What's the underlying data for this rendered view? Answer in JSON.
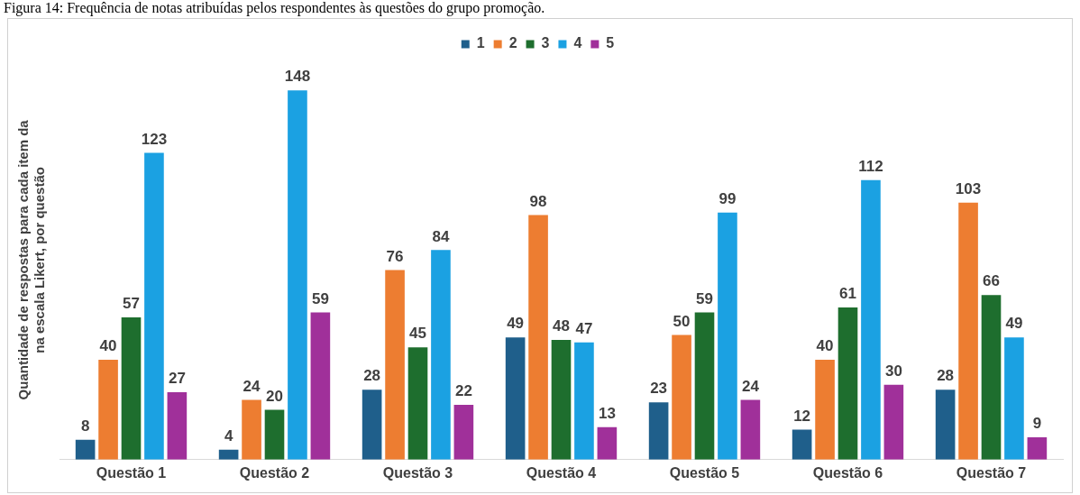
{
  "chart_data": {
    "type": "bar",
    "title": "Figura 14: Frequência de notas atribuídas pelos respondentes às questões do grupo promoção.",
    "ylabel": "Quantidade de respostas para cada item da na escala Likert, por questão",
    "categories": [
      "Questão 1",
      "Questão 2",
      "Questão 3",
      "Questão 4",
      "Questão 5",
      "Questão 6",
      "Questão 7"
    ],
    "series": [
      {
        "name": "1",
        "color": "#1f5f8b",
        "values": [
          8,
          4,
          28,
          49,
          23,
          12,
          28
        ]
      },
      {
        "name": "2",
        "color": "#ed7d31",
        "values": [
          40,
          24,
          76,
          98,
          50,
          40,
          103
        ]
      },
      {
        "name": "3",
        "color": "#1e6e2e",
        "values": [
          57,
          20,
          45,
          48,
          59,
          61,
          66
        ]
      },
      {
        "name": "4",
        "color": "#1ba1e2",
        "values": [
          123,
          148,
          84,
          47,
          99,
          112,
          49
        ]
      },
      {
        "name": "5",
        "color": "#a0309a",
        "values": [
          27,
          59,
          22,
          13,
          24,
          30,
          9
        ]
      }
    ],
    "data_labels": true,
    "legend": "top",
    "grid": false
  }
}
